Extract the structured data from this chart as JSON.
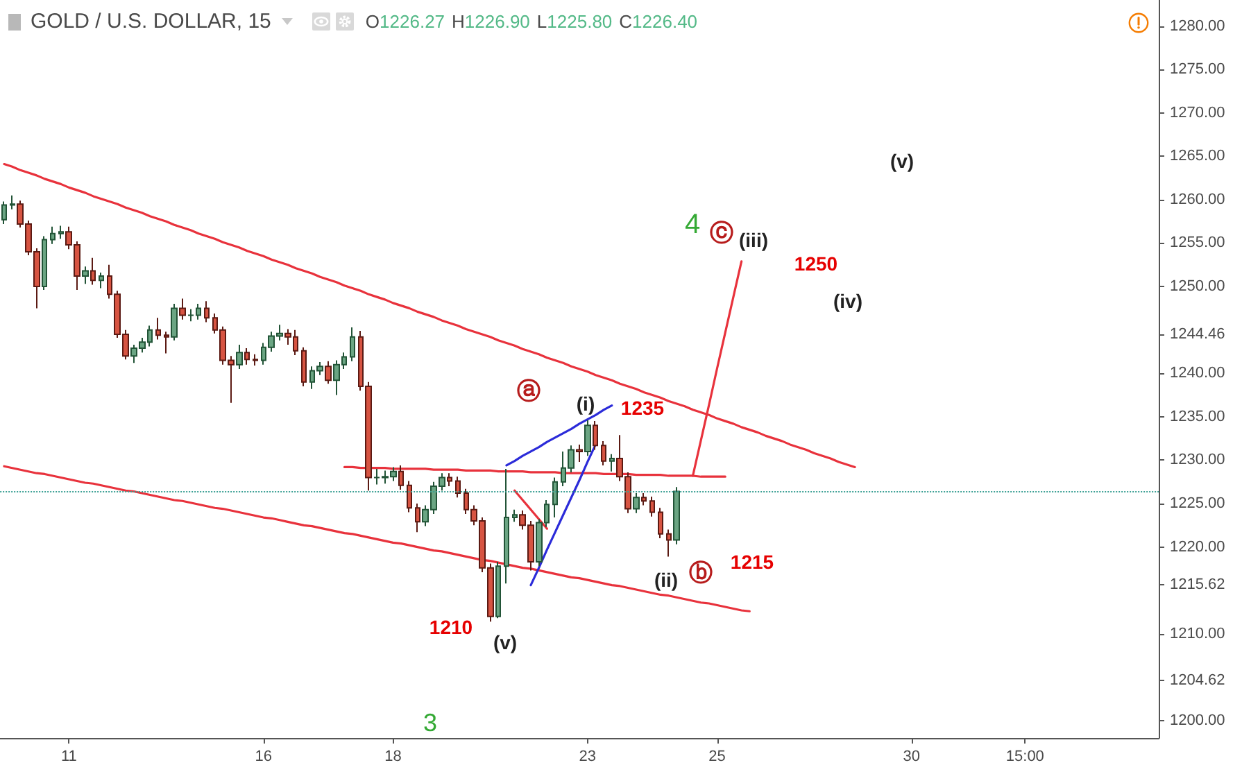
{
  "chart_data": {
    "type": "candlestick",
    "title": "GOLD / U.S. DOLLAR, 15",
    "subtitle": "O1226.27 H1226.90 L1225.80 C1226.40",
    "categories": [
      null,
      null,
      null,
      null,
      null,
      null,
      null,
      null,
      "11",
      null,
      null,
      null,
      null,
      null,
      null,
      null,
      null,
      null,
      null,
      null,
      null,
      null,
      null,
      null,
      null,
      null,
      null,
      null,
      null,
      null,
      null,
      null,
      "16",
      null,
      null,
      null,
      null,
      null,
      null,
      null,
      null,
      null,
      null,
      null,
      null,
      null,
      null,
      null,
      "18",
      null,
      null,
      null,
      null,
      null,
      null,
      null,
      null,
      null,
      null,
      null,
      null,
      null,
      null,
      null,
      null,
      null,
      null,
      null,
      null,
      null,
      null,
      null,
      "23",
      null,
      null,
      null,
      null,
      null,
      null,
      null,
      null,
      null,
      null,
      null,
      null,
      null,
      null,
      null,
      "25",
      null,
      null,
      null,
      null,
      null,
      null,
      null,
      null,
      null,
      null,
      null,
      null,
      null,
      null,
      null,
      null,
      null,
      null,
      null,
      null,
      null,
      null,
      null,
      "30",
      null,
      null,
      null,
      null,
      null,
      null,
      null,
      null,
      null,
      null,
      null,
      null,
      null,
      "15:00",
      null,
      null,
      null,
      null,
      null,
      null,
      null,
      null,
      null,
      null,
      null,
      null,
      null,
      null,
      null,
      null
    ],
    "ohlc": [
      [
        1257.7,
        1259.8,
        1257.2,
        1259.4
      ],
      [
        1259.4,
        1260.5,
        1258.9,
        1259.5
      ],
      [
        1259.5,
        1259.9,
        1256.8,
        1257.2
      ],
      [
        1257.2,
        1257.6,
        1253.6,
        1254.0
      ],
      [
        1254.0,
        1254.4,
        1247.5,
        1250.0
      ],
      [
        1250.0,
        1255.8,
        1249.6,
        1255.4
      ],
      [
        1255.4,
        1256.9,
        1254.9,
        1256.1
      ],
      [
        1256.1,
        1257.0,
        1255.5,
        1256.3
      ],
      [
        1256.3,
        1256.9,
        1254.3,
        1254.8
      ],
      [
        1254.8,
        1255.2,
        1249.6,
        1251.2
      ],
      [
        1251.2,
        1252.3,
        1250.3,
        1251.8
      ],
      [
        1251.8,
        1253.3,
        1250.2,
        1250.7
      ],
      [
        1250.7,
        1251.6,
        1249.8,
        1251.2
      ],
      [
        1251.2,
        1252.5,
        1248.6,
        1249.1
      ],
      [
        1249.1,
        1249.5,
        1244.1,
        1244.5
      ],
      [
        1244.5,
        1245.0,
        1241.6,
        1242.0
      ],
      [
        1242.0,
        1243.3,
        1241.2,
        1242.9
      ],
      [
        1242.9,
        1244.1,
        1242.4,
        1243.6
      ],
      [
        1243.6,
        1245.5,
        1243.1,
        1245.0
      ],
      [
        1245.0,
        1246.4,
        1243.9,
        1244.4
      ],
      [
        1244.4,
        1244.8,
        1242.3,
        1244.2
      ],
      [
        1244.2,
        1248.0,
        1243.8,
        1247.5
      ],
      [
        1247.5,
        1248.6,
        1246.2,
        1246.7
      ],
      [
        1246.7,
        1247.4,
        1246.0,
        1246.7
      ],
      [
        1246.7,
        1248.0,
        1246.2,
        1247.5
      ],
      [
        1247.5,
        1248.3,
        1245.9,
        1246.4
      ],
      [
        1246.4,
        1246.9,
        1244.6,
        1245.0
      ],
      [
        1245.0,
        1245.4,
        1241.0,
        1241.5
      ],
      [
        1241.5,
        1242.0,
        1236.6,
        1241.0
      ],
      [
        1241.0,
        1243.3,
        1240.5,
        1242.4
      ],
      [
        1242.4,
        1242.9,
        1241.0,
        1241.6
      ],
      [
        1241.6,
        1242.2,
        1240.9,
        1241.5
      ],
      [
        1241.5,
        1243.5,
        1241.0,
        1243.0
      ],
      [
        1243.0,
        1244.8,
        1242.5,
        1244.3
      ],
      [
        1244.3,
        1245.6,
        1243.8,
        1244.6
      ],
      [
        1244.6,
        1245.1,
        1243.3,
        1244.2
      ],
      [
        1244.2,
        1245.0,
        1242.1,
        1242.6
      ],
      [
        1242.6,
        1243.0,
        1238.5,
        1239.0
      ],
      [
        1239.0,
        1240.8,
        1238.2,
        1240.3
      ],
      [
        1240.3,
        1241.3,
        1239.8,
        1240.8
      ],
      [
        1240.8,
        1241.4,
        1238.8,
        1239.2
      ],
      [
        1239.2,
        1241.5,
        1237.5,
        1241.0
      ],
      [
        1241.0,
        1242.4,
        1240.5,
        1241.9
      ],
      [
        1241.9,
        1245.3,
        1241.4,
        1244.2
      ],
      [
        1244.2,
        1244.9,
        1238.0,
        1238.5
      ],
      [
        1238.5,
        1239.0,
        1226.5,
        1228.0
      ],
      [
        1228.0,
        1229.0,
        1227.2,
        1228.0
      ],
      [
        1228.0,
        1228.8,
        1227.3,
        1228.1
      ],
      [
        1228.1,
        1229.2,
        1227.6,
        1228.7
      ],
      [
        1228.7,
        1229.4,
        1226.6,
        1227.1
      ],
      [
        1227.1,
        1227.6,
        1224.0,
        1224.5
      ],
      [
        1224.5,
        1225.0,
        1221.7,
        1222.9
      ],
      [
        1222.9,
        1224.8,
        1222.4,
        1224.3
      ],
      [
        1224.3,
        1227.5,
        1223.8,
        1227.0
      ],
      [
        1227.0,
        1228.5,
        1226.5,
        1228.0
      ],
      [
        1228.0,
        1228.5,
        1227.0,
        1227.6
      ],
      [
        1227.6,
        1228.1,
        1225.7,
        1226.2
      ],
      [
        1226.2,
        1226.7,
        1223.8,
        1224.3
      ],
      [
        1224.3,
        1224.8,
        1222.5,
        1223.0
      ],
      [
        1223.0,
        1223.4,
        1217.1,
        1217.6
      ],
      [
        1217.6,
        1218.1,
        1211.4,
        1212.0
      ],
      [
        1212.0,
        1218.3,
        1211.8,
        1217.8
      ],
      [
        1217.8,
        1229.0,
        1215.8,
        1223.4
      ],
      [
        1223.4,
        1224.3,
        1222.9,
        1223.7
      ],
      [
        1223.7,
        1224.2,
        1222.0,
        1222.5
      ],
      [
        1222.5,
        1223.0,
        1217.3,
        1218.3
      ],
      [
        1218.3,
        1223.2,
        1217.8,
        1222.8
      ],
      [
        1222.8,
        1225.4,
        1222.3,
        1224.9
      ],
      [
        1224.9,
        1228.0,
        1223.4,
        1227.5
      ],
      [
        1227.5,
        1231.0,
        1227.0,
        1229.1
      ],
      [
        1229.1,
        1231.7,
        1228.6,
        1231.2
      ],
      [
        1231.2,
        1231.8,
        1229.8,
        1231.0
      ],
      [
        1231.0,
        1234.6,
        1230.5,
        1234.0
      ],
      [
        1234.0,
        1234.5,
        1231.2,
        1231.7
      ],
      [
        1231.7,
        1232.2,
        1229.4,
        1229.9
      ],
      [
        1229.9,
        1230.7,
        1228.7,
        1230.2
      ],
      [
        1230.2,
        1232.9,
        1227.6,
        1228.1
      ],
      [
        1228.1,
        1228.6,
        1223.9,
        1224.4
      ],
      [
        1224.4,
        1226.2,
        1223.9,
        1225.7
      ],
      [
        1225.7,
        1226.2,
        1224.8,
        1225.3
      ],
      [
        1225.3,
        1225.8,
        1223.5,
        1224.0
      ],
      [
        1224.0,
        1224.5,
        1221.0,
        1221.5
      ],
      [
        1221.5,
        1222.0,
        1218.9,
        1220.8
      ],
      [
        1220.8,
        1226.9,
        1220.3,
        1226.4
      ],
      null,
      null,
      null,
      null,
      null,
      null,
      null,
      null,
      null,
      null,
      null,
      null,
      null,
      null,
      null,
      null,
      null,
      null,
      null,
      null,
      null,
      null,
      null,
      null,
      null,
      null,
      null,
      null,
      null,
      null,
      null,
      null,
      null,
      null,
      null,
      null,
      null,
      null,
      null,
      null,
      null,
      null,
      null,
      null,
      null,
      null,
      null,
      null,
      null,
      null,
      null,
      null,
      null,
      null,
      null,
      null,
      null,
      null,
      null
    ],
    "series": [
      {
        "type": "line",
        "color": "#e8323c",
        "values": [
          1264.1,
          1263.8,
          1263.4,
          1263.1,
          1262.8,
          1262.4,
          1262.1,
          1261.8,
          1261.4,
          1261.1,
          1260.8,
          1260.4,
          1260.1,
          1259.8,
          1259.5,
          1259.1,
          1258.8,
          1258.5,
          1258.1,
          1257.8,
          1257.5,
          1257.1,
          1256.8,
          1256.5,
          1256.1,
          1255.8,
          1255.5,
          1255.1,
          1254.8,
          1254.5,
          1254.1,
          1253.8,
          1253.5,
          1253.1,
          1252.8,
          1252.5,
          1252.1,
          1251.8,
          1251.5,
          1251.1,
          1250.8,
          1250.5,
          1250.1,
          1249.8,
          1249.5,
          1249.1,
          1248.8,
          1248.5,
          1248.1,
          1247.8,
          1247.5,
          1247.1,
          1246.8,
          1246.5,
          1246.1,
          1245.8,
          1245.5,
          1245.1,
          1244.8,
          1244.5,
          1244.2,
          1243.8,
          1243.5,
          1243.2,
          1242.8,
          1242.5,
          1242.2,
          1241.8,
          1241.5,
          1241.2,
          1240.8,
          1240.5,
          1240.2,
          1239.8,
          1239.5,
          1239.2,
          1238.8,
          1238.5,
          1238.2,
          1237.8,
          1237.5,
          1237.2,
          1236.8,
          1236.5,
          1236.2,
          1235.8,
          1235.5,
          1235.2,
          1234.8,
          1234.5,
          1234.2,
          1233.8,
          1233.5,
          1233.2,
          1232.8,
          1232.5,
          1232.2,
          1231.8,
          1231.5,
          1231.2,
          1230.8,
          1230.5,
          1230.2,
          1229.8,
          1229.5,
          1229.2,
          null,
          null,
          null,
          null,
          null,
          null,
          null,
          null,
          null,
          null,
          null,
          null,
          null,
          null,
          null,
          null,
          null,
          null,
          null,
          null,
          null,
          null,
          null,
          null,
          null,
          null,
          null,
          null,
          null,
          null,
          null,
          null,
          null,
          null,
          null,
          null,
          null
        ]
      },
      {
        "type": "line",
        "color": "#e8323c",
        "values": [
          1229.3,
          1229.1,
          1228.9,
          1228.7,
          1228.5,
          1228.4,
          1228.2,
          1228.0,
          1227.8,
          1227.6,
          1227.4,
          1227.3,
          1227.1,
          1226.9,
          1226.7,
          1226.5,
          1226.4,
          1226.2,
          1226.0,
          1225.8,
          1225.6,
          1225.4,
          1225.3,
          1225.1,
          1224.9,
          1224.7,
          1224.5,
          1224.4,
          1224.2,
          1224.0,
          1223.8,
          1223.6,
          1223.4,
          1223.3,
          1223.1,
          1222.9,
          1222.7,
          1222.5,
          1222.4,
          1222.2,
          1222.0,
          1221.8,
          1221.6,
          1221.5,
          1221.3,
          1221.1,
          1220.9,
          1220.7,
          1220.5,
          1220.4,
          1220.2,
          1220.0,
          1219.8,
          1219.6,
          1219.5,
          1219.3,
          1219.1,
          1218.9,
          1218.7,
          1218.5,
          1218.4,
          1218.2,
          1218.0,
          1217.8,
          1217.6,
          1217.5,
          1217.3,
          1217.1,
          1216.9,
          1216.7,
          1216.5,
          1216.4,
          1216.2,
          1216.0,
          1215.8,
          1215.6,
          1215.5,
          1215.3,
          1215.1,
          1214.9,
          1214.7,
          1214.5,
          1214.4,
          1214.2,
          1214.0,
          1213.8,
          1213.6,
          1213.5,
          1213.3,
          1213.1,
          1212.9,
          1212.7,
          1212.6,
          null,
          null,
          null,
          null,
          null,
          null,
          null,
          null,
          null,
          null,
          null,
          null,
          null,
          null,
          null,
          null,
          null,
          null,
          null,
          null,
          null,
          null,
          null,
          null,
          null,
          null,
          null,
          null,
          null,
          null,
          null,
          null,
          null,
          null,
          null,
          null,
          null,
          null,
          null,
          null,
          null,
          null,
          null,
          null,
          null,
          null,
          null,
          null,
          null,
          null
        ]
      },
      {
        "type": "line",
        "color": "#e8323c",
        "values": [
          null,
          null,
          null,
          null,
          null,
          null,
          null,
          null,
          null,
          null,
          null,
          null,
          null,
          null,
          null,
          null,
          null,
          null,
          null,
          null,
          null,
          null,
          null,
          null,
          null,
          null,
          null,
          null,
          null,
          null,
          null,
          null,
          null,
          null,
          null,
          null,
          null,
          null,
          null,
          null,
          null,
          null,
          1229.2,
          1229.2,
          1229.1,
          1229.1,
          1229.1,
          1229.1,
          1229.0,
          1229.0,
          1229.0,
          1229.0,
          1229.0,
          1228.9,
          1228.9,
          1228.9,
          1228.9,
          1228.8,
          1228.8,
          1228.8,
          1228.8,
          1228.7,
          1228.7,
          1228.7,
          1228.7,
          1228.6,
          1228.6,
          1228.6,
          1228.6,
          1228.5,
          1228.5,
          1228.5,
          1228.5,
          1228.5,
          1228.4,
          1228.4,
          1228.4,
          1228.4,
          1228.3,
          1228.3,
          1228.3,
          1228.3,
          1228.2,
          1228.2,
          1228.2,
          1228.2,
          1228.1,
          1228.1,
          1228.1,
          1228.1,
          null,
          null,
          null,
          null,
          null,
          null,
          null,
          null,
          null,
          null,
          null,
          null,
          null,
          null,
          null,
          null,
          null,
          null,
          null,
          null,
          null,
          null,
          null,
          null,
          null,
          null,
          null,
          null,
          null,
          null,
          null,
          null,
          null,
          null,
          null,
          null,
          null,
          null,
          null,
          null,
          null,
          null,
          null,
          null,
          null,
          null,
          null,
          null,
          null,
          null,
          null,
          null,
          null
        ]
      },
      {
        "type": "line",
        "color": "#e8323c",
        "values": [
          null,
          null,
          null,
          null,
          null,
          null,
          null,
          null,
          null,
          null,
          null,
          null,
          null,
          null,
          null,
          null,
          null,
          null,
          null,
          null,
          null,
          null,
          null,
          null,
          null,
          null,
          null,
          null,
          null,
          null,
          null,
          null,
          null,
          null,
          null,
          null,
          null,
          null,
          null,
          null,
          null,
          null,
          null,
          null,
          null,
          null,
          null,
          null,
          null,
          null,
          null,
          null,
          null,
          null,
          null,
          null,
          null,
          null,
          null,
          null,
          null,
          null,
          null,
          null,
          null,
          null,
          null,
          null,
          null,
          null,
          null,
          null,
          null,
          null,
          null,
          null,
          null,
          null,
          null,
          null,
          null,
          null,
          null,
          null,
          null,
          1228.2,
          1232.3,
          1236.4,
          1240.6,
          1244.7,
          1248.8,
          1252.9,
          null,
          null,
          null,
          null,
          null,
          null,
          null,
          null,
          null,
          null,
          null,
          null,
          null,
          null,
          null,
          null,
          null,
          null,
          null,
          null,
          null,
          null,
          null,
          null,
          null,
          null,
          null,
          null,
          null,
          null,
          null,
          null,
          null,
          null,
          null,
          null,
          null,
          null,
          null,
          null,
          null,
          null,
          null,
          null,
          null,
          null,
          null,
          null,
          null,
          null,
          null
        ]
      },
      {
        "type": "line",
        "color": "#e8323c",
        "values": [
          null,
          null,
          null,
          null,
          null,
          null,
          null,
          null,
          null,
          null,
          null,
          null,
          null,
          null,
          null,
          null,
          null,
          null,
          null,
          null,
          null,
          null,
          null,
          null,
          null,
          null,
          null,
          null,
          null,
          null,
          null,
          null,
          null,
          null,
          null,
          null,
          null,
          null,
          null,
          null,
          null,
          null,
          null,
          null,
          null,
          null,
          null,
          null,
          null,
          null,
          null,
          null,
          null,
          null,
          null,
          null,
          null,
          null,
          null,
          null,
          null,
          null,
          null,
          1226.5,
          1225.4,
          1224.3,
          1223.2,
          1222.1,
          null,
          null,
          null,
          null,
          null,
          null,
          null,
          null,
          null,
          null,
          null,
          null,
          null,
          null,
          null,
          null,
          null,
          null,
          null,
          null,
          null,
          null,
          null,
          null,
          null,
          null,
          null,
          null,
          null,
          null,
          null,
          null,
          null,
          null,
          null,
          null,
          null,
          null,
          null,
          null,
          null,
          null,
          null,
          null,
          null,
          null,
          null,
          null,
          null,
          null,
          null,
          null,
          null,
          null,
          null,
          null,
          null,
          null,
          null,
          null,
          null,
          null,
          null,
          null,
          null,
          null,
          null,
          null,
          null,
          null,
          null,
          null,
          null,
          null,
          null
        ]
      },
      {
        "type": "line",
        "color": "#2b2bd9",
        "values": [
          null,
          null,
          null,
          null,
          null,
          null,
          null,
          null,
          null,
          null,
          null,
          null,
          null,
          null,
          null,
          null,
          null,
          null,
          null,
          null,
          null,
          null,
          null,
          null,
          null,
          null,
          null,
          null,
          null,
          null,
          null,
          null,
          null,
          null,
          null,
          null,
          null,
          null,
          null,
          null,
          null,
          null,
          null,
          null,
          null,
          null,
          null,
          null,
          null,
          null,
          null,
          null,
          null,
          null,
          null,
          null,
          null,
          null,
          null,
          null,
          null,
          null,
          1229.4,
          1229.9,
          1230.5,
          1231.0,
          1231.5,
          1232.1,
          1232.6,
          1233.1,
          1233.6,
          1234.2,
          1234.7,
          1235.2,
          1235.8,
          1236.3,
          null,
          null,
          null,
          null,
          null,
          null,
          null,
          null,
          null,
          null,
          null,
          null,
          null,
          null,
          null,
          null,
          null,
          null,
          null,
          null,
          null,
          null,
          null,
          null,
          null,
          null,
          null,
          null,
          null,
          null,
          null,
          null,
          null,
          null,
          null,
          null,
          null,
          null,
          null,
          null,
          null,
          null,
          null,
          null,
          null,
          null,
          null,
          null,
          null,
          null,
          null,
          null,
          null,
          null,
          null,
          null,
          null,
          null,
          null,
          null,
          null,
          null,
          null,
          null,
          null,
          null,
          null
        ]
      },
      {
        "type": "line",
        "color": "#2b2bd9",
        "values": [
          null,
          null,
          null,
          null,
          null,
          null,
          null,
          null,
          null,
          null,
          null,
          null,
          null,
          null,
          null,
          null,
          null,
          null,
          null,
          null,
          null,
          null,
          null,
          null,
          null,
          null,
          null,
          null,
          null,
          null,
          null,
          null,
          null,
          null,
          null,
          null,
          null,
          null,
          null,
          null,
          null,
          null,
          null,
          null,
          null,
          null,
          null,
          null,
          null,
          null,
          null,
          null,
          null,
          null,
          null,
          null,
          null,
          null,
          null,
          null,
          null,
          null,
          null,
          null,
          null,
          1215.6,
          1217.6,
          1219.7,
          1221.7,
          1223.7,
          1225.7,
          1227.7,
          1229.8,
          1231.8,
          null,
          null,
          null,
          null,
          null,
          null,
          null,
          null,
          null,
          null,
          null,
          null,
          null,
          null,
          null,
          null,
          null,
          null,
          null,
          null,
          null,
          null,
          null,
          null,
          null,
          null,
          null,
          null,
          null,
          null,
          null,
          null,
          null,
          null,
          null,
          null,
          null,
          null,
          null,
          null,
          null,
          null,
          null,
          null,
          null,
          null,
          null,
          null,
          null,
          null,
          null,
          null,
          null,
          null,
          null,
          null,
          null,
          null,
          null,
          null,
          null,
          null,
          null,
          null,
          null,
          null,
          null,
          null,
          null
        ]
      }
    ],
    "marker": "none",
    "ylim": [
      1198,
      1283
    ],
    "yticks": [
      {
        "value": 1280,
        "label": "1280.00"
      },
      {
        "value": 1275,
        "label": "1275.00"
      },
      {
        "value": 1270,
        "label": "1270.00"
      },
      {
        "value": 1265,
        "label": "1265.00"
      },
      {
        "value": 1260,
        "label": "1260.00"
      },
      {
        "value": 1255,
        "label": "1255.00"
      },
      {
        "value": 1250,
        "label": "1250.00"
      },
      1244.46,
      {
        "value": 1240,
        "label": "1240.00"
      },
      {
        "value": 1235,
        "label": "1235.00"
      },
      {
        "value": 1230,
        "label": "1230.00"
      },
      {
        "value": 1225,
        "label": "1225.00"
      },
      {
        "value": 1220,
        "label": "1220.00"
      },
      1215.62,
      {
        "value": 1210,
        "label": "1210.00"
      },
      1204.62,
      {
        "value": 1200,
        "label": "1200.00"
      }
    ],
    "ref_lines": [
      {
        "axis": "y",
        "value": 1226.4,
        "color": "#3a9f94",
        "line_style": "dotted"
      }
    ],
    "annotations": [
      "4",
      "ⓒ",
      "(iii)",
      "1250",
      "(iv)",
      "(v)",
      "ⓐ",
      "(i)",
      "1235",
      "(ii)",
      "ⓑ",
      "1215",
      "1210",
      "(v)",
      "3"
    ]
  }
}
